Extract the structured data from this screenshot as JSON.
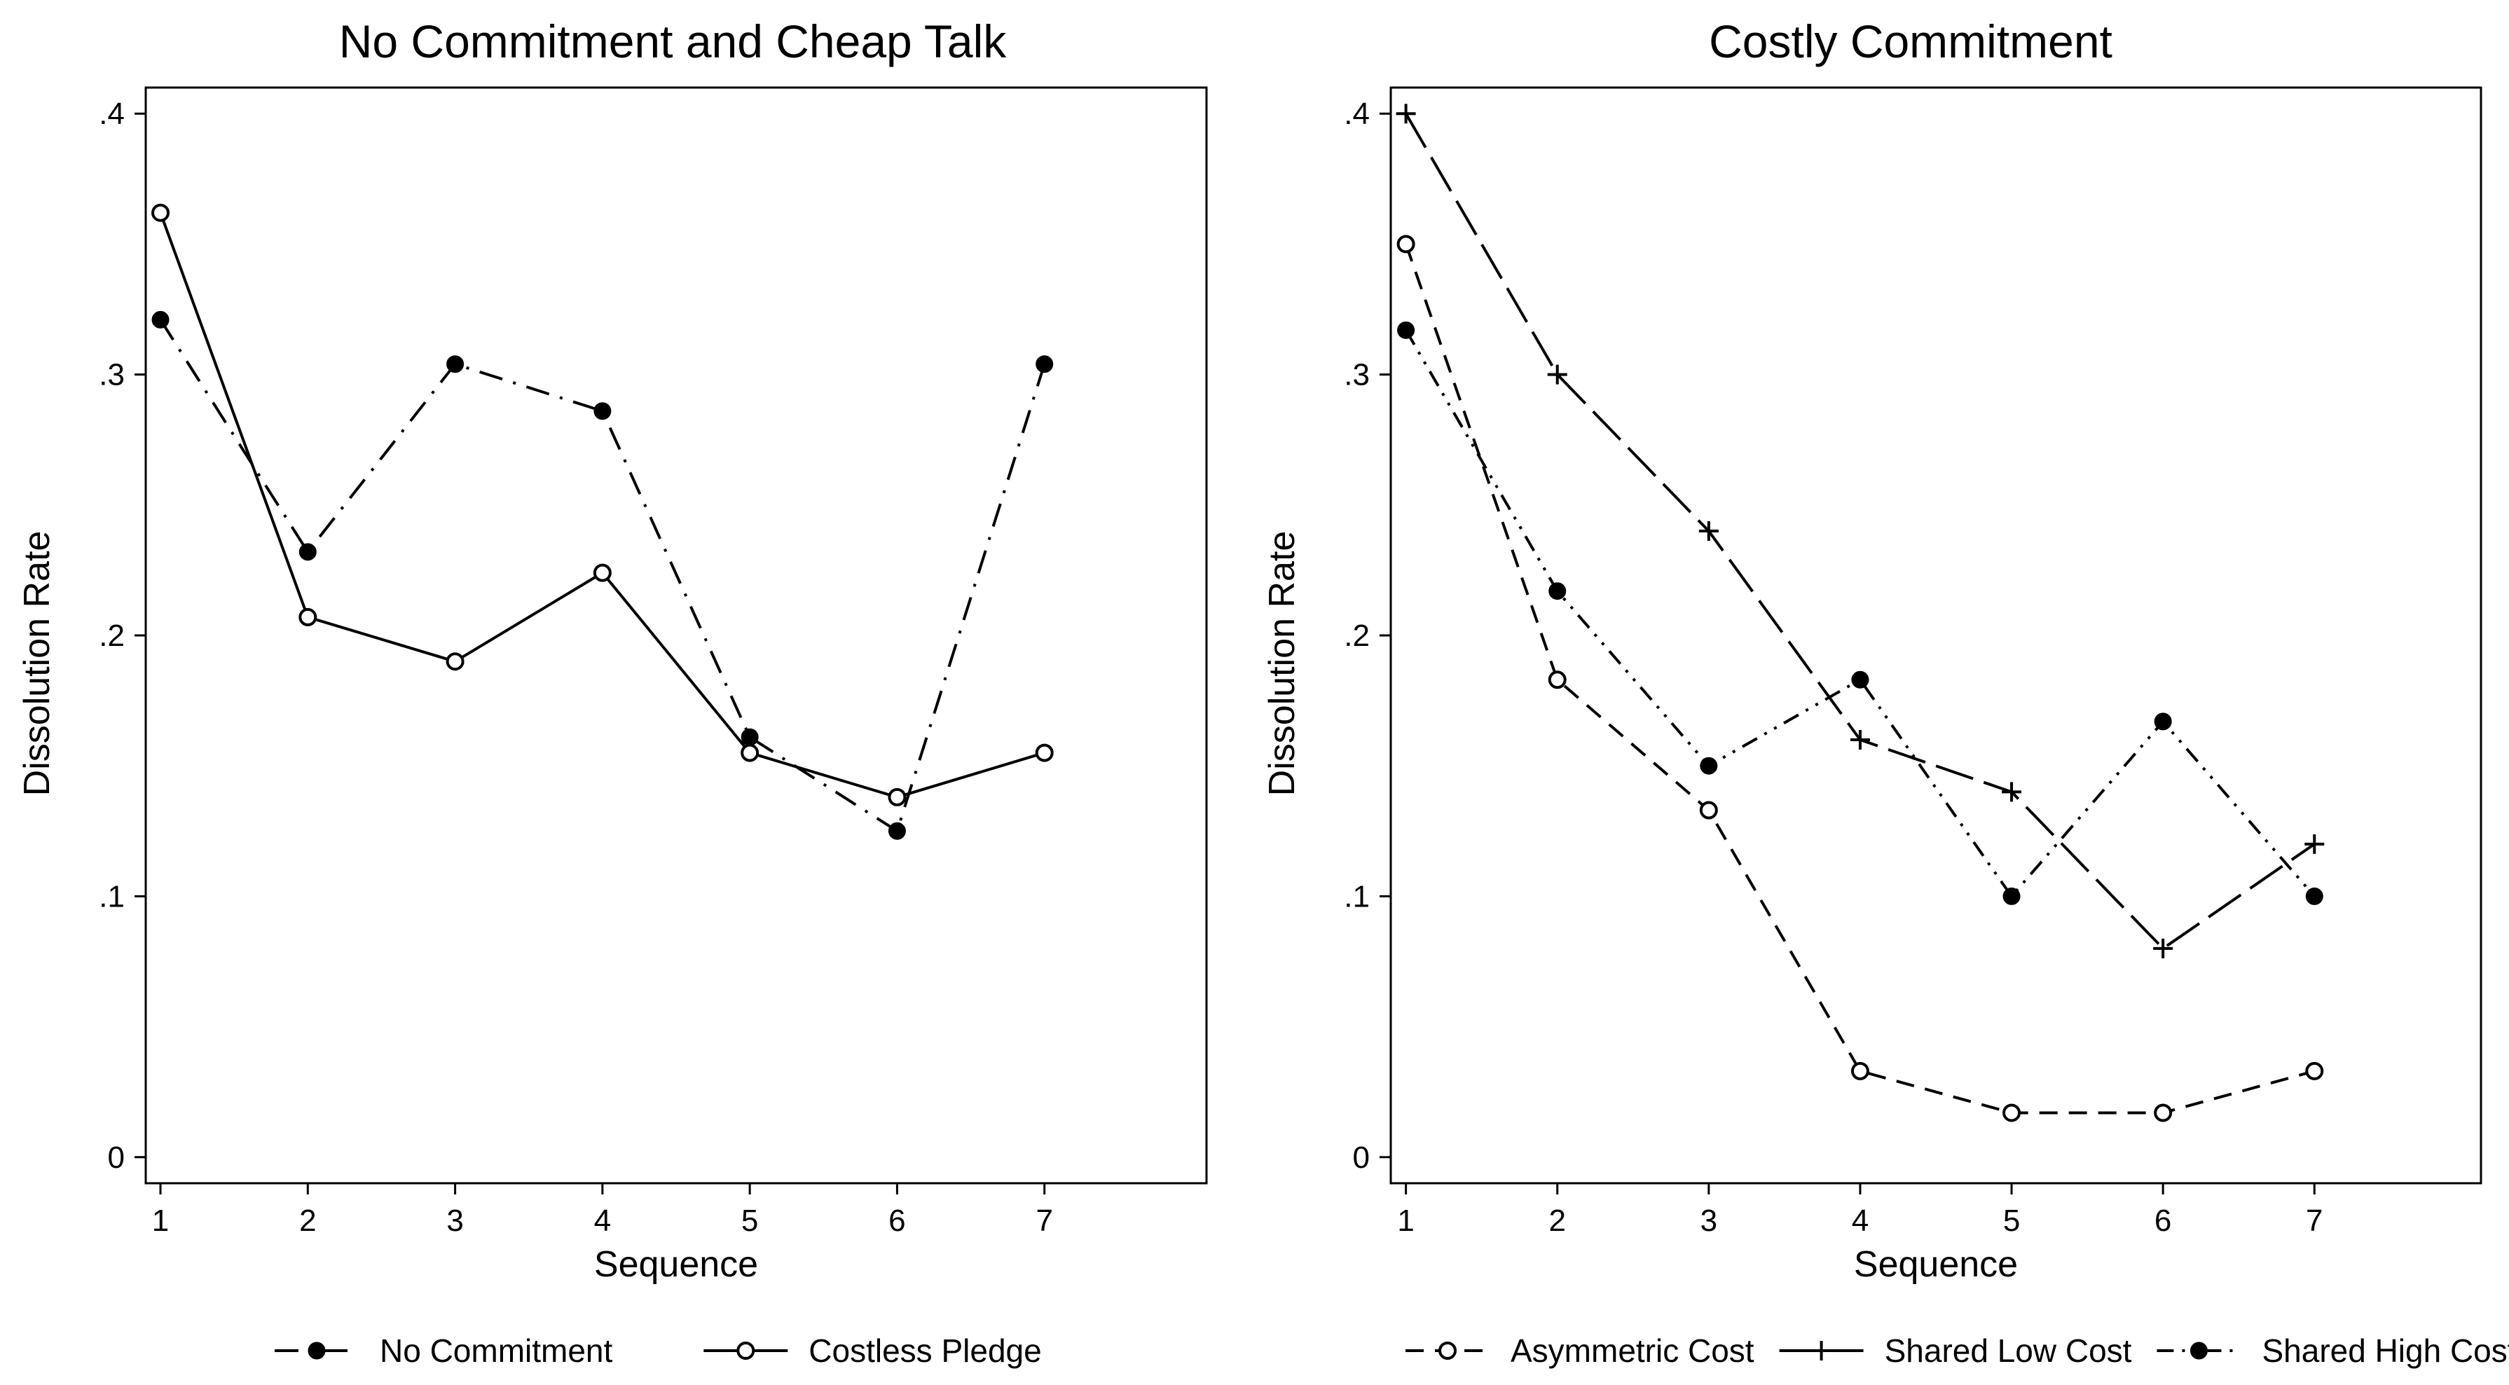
{
  "chart_data": [
    {
      "type": "line",
      "title": "No Commitment and Cheap Talk",
      "xlabel": "Sequence",
      "ylabel": "Dissolution Rate",
      "x": [
        1,
        2,
        3,
        4,
        5,
        6,
        7
      ],
      "x_ticks": [
        "1",
        "2",
        "3",
        "4",
        "5",
        "6",
        "7"
      ],
      "xlim": [
        0.9,
        8.1
      ],
      "ylim": [
        -0.01,
        0.41
      ],
      "y_ticks": [
        {
          "value": 0,
          "label": "0"
        },
        {
          "value": 0.1,
          "label": ".1"
        },
        {
          "value": 0.2,
          "label": ".2"
        },
        {
          "value": 0.3,
          "label": ".3"
        },
        {
          "value": 0.4,
          "label": ".4"
        }
      ],
      "grid": false,
      "legend_position": "bottom",
      "series": [
        {
          "name": "No Commitment",
          "values": [
            0.321,
            0.232,
            0.304,
            0.286,
            0.161,
            0.125,
            0.304
          ],
          "marker": "filled-circle",
          "dash": "dash-dot",
          "color": "#000000"
        },
        {
          "name": "Costless Pledge",
          "values": [
            0.362,
            0.207,
            0.19,
            0.224,
            0.155,
            0.138,
            0.155
          ],
          "marker": "hollow-circle",
          "dash": "solid",
          "color": "#000000"
        }
      ]
    },
    {
      "type": "line",
      "title": "Costly Commitment",
      "xlabel": "Sequence",
      "ylabel": "Dissolution Rate",
      "x": [
        1,
        2,
        3,
        4,
        5,
        6,
        7
      ],
      "x_ticks": [
        "1",
        "2",
        "3",
        "4",
        "5",
        "6",
        "7"
      ],
      "xlim": [
        0.9,
        8.1
      ],
      "ylim": [
        -0.01,
        0.41
      ],
      "y_ticks": [
        {
          "value": 0,
          "label": "0"
        },
        {
          "value": 0.1,
          "label": ".1"
        },
        {
          "value": 0.2,
          "label": ".2"
        },
        {
          "value": 0.3,
          "label": ".3"
        },
        {
          "value": 0.4,
          "label": ".4"
        }
      ],
      "grid": false,
      "legend_position": "bottom",
      "series": [
        {
          "name": "Asymmetric Cost",
          "values": [
            0.35,
            0.183,
            0.133,
            0.033,
            0.017,
            0.017,
            0.033
          ],
          "marker": "hollow-circle",
          "dash": "short-dash",
          "color": "#000000"
        },
        {
          "name": "Shared Low Cost",
          "values": [
            0.4,
            0.3,
            0.24,
            0.16,
            0.14,
            0.08,
            0.12
          ],
          "marker": "plus",
          "dash": "long-dash",
          "color": "#000000"
        },
        {
          "name": "Shared High Cost",
          "values": [
            0.317,
            0.217,
            0.15,
            0.183,
            0.1,
            0.167,
            0.1
          ],
          "marker": "filled-circle",
          "dash": "dash-dot-dot",
          "color": "#000000"
        }
      ]
    }
  ]
}
